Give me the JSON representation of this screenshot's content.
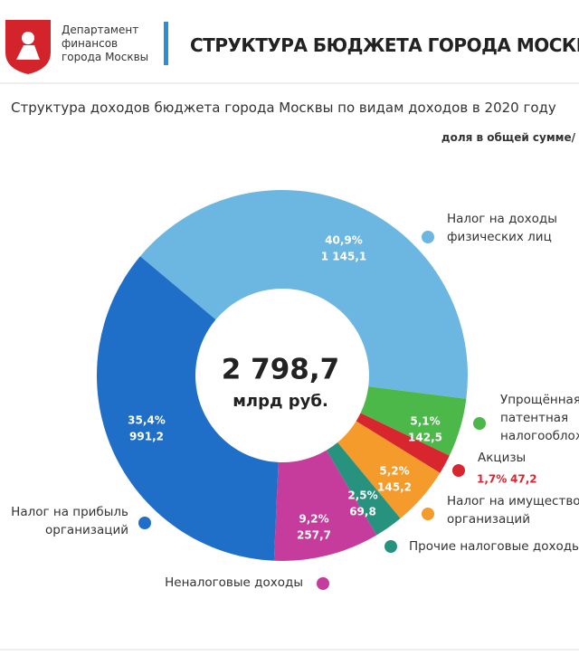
{
  "header": {
    "org": "Департамент финансов города Москвы",
    "title": "СТРУКТУРА БЮДЖЕТА ГОРОДА МОСКВЫ ПО ВИ"
  },
  "chart_data": {
    "type": "pie",
    "title": "Структура доходов бюджета города Москвы по видам доходов в 2020 году",
    "subtitle": "доля в общей сумме/",
    "categories": [
      "Налог на доходы физических лиц",
      "Упрощённая и патентная налогооблож",
      "Акцизы",
      "Налог на имущество организаций",
      "Прочие налоговые доходы",
      "Неналоговые доходы",
      "Налог на прибыль организаций"
    ],
    "values": [
      40.9,
      5.1,
      1.7,
      5.2,
      2.5,
      9.2,
      35.4
    ],
    "value_labels": [
      "40,9%",
      "5,1%",
      "1,7%",
      "5,2%",
      "2,5%",
      "9,2%",
      "35,4%"
    ],
    "amounts": [
      1145.1,
      142.5,
      47.2,
      145.2,
      69.8,
      257.7,
      991.2
    ],
    "amount_labels": [
      "1 145,1",
      "142,5",
      "47,2",
      "145,2",
      "69,8",
      "257,7",
      "991,2"
    ],
    "colors": [
      "#6cb6e2",
      "#4cb84a",
      "#d7262e",
      "#f49b2c",
      "#27937f",
      "#c53c9c",
      "#1f6fc9"
    ],
    "total": {
      "value": 2798.7,
      "label": "2 798,7"
    },
    "total_unit": "млрд руб."
  }
}
